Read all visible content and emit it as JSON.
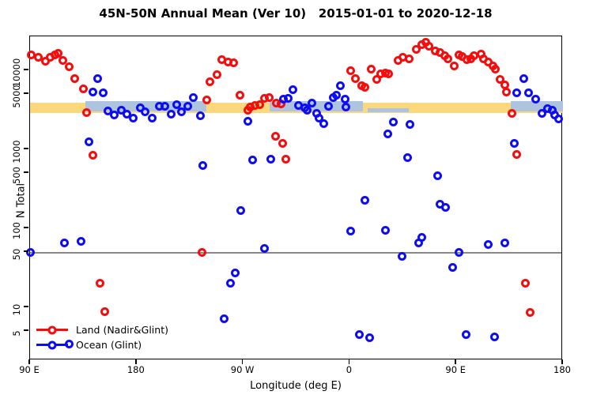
{
  "title": "45N-50N Annual Mean (Ver 10)   2015-01-01 to 2020-12-18",
  "chart_data": {
    "type": "scatter",
    "title": "45N-50N Annual Mean (Ver 10)   2015-01-01 to 2020-12-18",
    "xlabel": "Longitude (deg E)",
    "ylabel": "N Total",
    "x_axis": {
      "note": "longitude axis spans 450 deg starting at 90E wrapping eastward",
      "range_deg": [
        90,
        540
      ],
      "tick_positions_deg": [
        90,
        180,
        270,
        360,
        450,
        540
      ],
      "tick_labels": [
        "90 E",
        "180",
        "90 W",
        "0",
        "90 E",
        "180"
      ]
    },
    "y_axis": {
      "scale": "log",
      "range": [
        2.14,
        27000
      ],
      "tick_values": [
        5,
        10,
        50,
        100,
        500,
        1000,
        5000,
        10000
      ],
      "tick_labels": [
        "5",
        "10",
        "50",
        "100",
        "500",
        "1000",
        "5000",
        "10000"
      ]
    },
    "grid": "off",
    "reference_line": {
      "value": 50,
      "color": "#888888"
    },
    "bands": {
      "orange": {
        "color": "#FCD87C",
        "lon_start": 90,
        "lon_end": 540,
        "value_low": 2900,
        "value_high": 3900
      },
      "blue_color": "#AEC3DE",
      "blue_value_low": 3050,
      "blue_value_high": 4100,
      "blue_segments": [
        {
          "lon_start": 137,
          "lon_end": 239,
          "thin": false
        },
        {
          "lon_start": 292,
          "lon_end": 371,
          "thin": false
        },
        {
          "lon_start": 375,
          "lon_end": 410,
          "thin": true
        },
        {
          "lon_start": 496,
          "lon_end": 540,
          "thin": false
        }
      ]
    },
    "legend": {
      "position": "bottom-left"
    },
    "series": [
      {
        "name": "Land (Nadir&Glint)",
        "color": "#F50D0D",
        "points": [
          [
            91,
            15800
          ],
          [
            97,
            14500
          ],
          [
            103,
            13200
          ],
          [
            107,
            14500
          ],
          [
            111,
            15800
          ],
          [
            114,
            16600
          ],
          [
            118,
            13500
          ],
          [
            123,
            11200
          ],
          [
            128,
            7900
          ],
          [
            135,
            5900
          ],
          [
            138,
            2950
          ],
          [
            143,
            850
          ],
          [
            149,
            20
          ],
          [
            153,
            8.9
          ],
          [
            235,
            50
          ],
          [
            239,
            4270
          ],
          [
            242,
            7240
          ],
          [
            248,
            8900
          ],
          [
            252,
            13800
          ],
          [
            257,
            12900
          ],
          [
            262,
            12600
          ],
          [
            267,
            4800
          ],
          [
            274,
            3160
          ],
          [
            276,
            3470
          ],
          [
            280,
            3630
          ],
          [
            284,
            3720
          ],
          [
            288,
            4470
          ],
          [
            292,
            4570
          ],
          [
            298,
            3890
          ],
          [
            302,
            3800
          ],
          [
            297,
            1480
          ],
          [
            303,
            1180
          ],
          [
            306,
            760
          ],
          [
            361,
            10000
          ],
          [
            365,
            7940
          ],
          [
            370,
            6460
          ],
          [
            373,
            6170
          ],
          [
            378,
            10500
          ],
          [
            383,
            7760
          ],
          [
            386,
            9120
          ],
          [
            390,
            9330
          ],
          [
            393,
            9120
          ],
          [
            401,
            13500
          ],
          [
            405,
            14800
          ],
          [
            410,
            14100
          ],
          [
            416,
            18600
          ],
          [
            421,
            21400
          ],
          [
            424,
            22900
          ],
          [
            427,
            20400
          ],
          [
            432,
            17800
          ],
          [
            436,
            17000
          ],
          [
            440,
            15500
          ],
          [
            443,
            14100
          ],
          [
            448,
            11500
          ],
          [
            452,
            15800
          ],
          [
            455,
            15100
          ],
          [
            459,
            13800
          ],
          [
            462,
            14100
          ],
          [
            465,
            15500
          ],
          [
            471,
            16200
          ],
          [
            473,
            14100
          ],
          [
            477,
            12900
          ],
          [
            481,
            11500
          ],
          [
            483,
            10300
          ],
          [
            487,
            7760
          ],
          [
            491,
            6610
          ],
          [
            492,
            5370
          ],
          [
            497,
            2880
          ],
          [
            501,
            870
          ],
          [
            508,
            20
          ],
          [
            512,
            8.7
          ]
        ]
      },
      {
        "name": "Ocean (Glint)",
        "color": "#0D0DF5",
        "points": [
          [
            90,
            50
          ],
          [
            119,
            65
          ],
          [
            133,
            68
          ],
          [
            123,
            3.4
          ],
          [
            147,
            7940
          ],
          [
            143,
            5370
          ],
          [
            152,
            5250
          ],
          [
            140,
            1260
          ],
          [
            156,
            3080
          ],
          [
            161,
            2750
          ],
          [
            167,
            3160
          ],
          [
            172,
            2820
          ],
          [
            177,
            2510
          ],
          [
            183,
            3390
          ],
          [
            187,
            3020
          ],
          [
            193,
            2510
          ],
          [
            199,
            3550
          ],
          [
            204,
            3550
          ],
          [
            209,
            2820
          ],
          [
            214,
            3720
          ],
          [
            218,
            3020
          ],
          [
            223,
            3550
          ],
          [
            228,
            4570
          ],
          [
            234,
            2690
          ],
          [
            236,
            630
          ],
          [
            254,
            7.2
          ],
          [
            259,
            20
          ],
          [
            263,
            27
          ],
          [
            268,
            170
          ],
          [
            274,
            2290
          ],
          [
            278,
            740
          ],
          [
            288,
            56
          ],
          [
            293,
            760
          ],
          [
            304,
            4370
          ],
          [
            308,
            4470
          ],
          [
            312,
            5750
          ],
          [
            317,
            3630
          ],
          [
            322,
            3390
          ],
          [
            324,
            3160
          ],
          [
            328,
            3890
          ],
          [
            332,
            2880
          ],
          [
            334,
            2510
          ],
          [
            338,
            2140
          ],
          [
            342,
            3550
          ],
          [
            346,
            4570
          ],
          [
            349,
            4900
          ],
          [
            352,
            6460
          ],
          [
            356,
            4370
          ],
          [
            357,
            3470
          ],
          [
            361,
            93
          ],
          [
            368,
            4.5
          ],
          [
            373,
            225
          ],
          [
            377,
            4.1
          ],
          [
            390,
            95
          ],
          [
            392,
            1580
          ],
          [
            397,
            2240
          ],
          [
            404,
            44
          ],
          [
            409,
            780
          ],
          [
            411,
            2090
          ],
          [
            418,
            66
          ],
          [
            421,
            76
          ],
          [
            434,
            460
          ],
          [
            436,
            200
          ],
          [
            441,
            185
          ],
          [
            447,
            32
          ],
          [
            452,
            50
          ],
          [
            458,
            4.5
          ],
          [
            477,
            63
          ],
          [
            482,
            4.2
          ],
          [
            491,
            66
          ],
          [
            499,
            1200
          ],
          [
            501,
            5250
          ],
          [
            507,
            7940
          ],
          [
            511,
            5250
          ],
          [
            517,
            4370
          ],
          [
            522,
            2880
          ],
          [
            527,
            3310
          ],
          [
            531,
            3160
          ],
          [
            533,
            2750
          ],
          [
            536,
            2450
          ]
        ]
      }
    ]
  }
}
